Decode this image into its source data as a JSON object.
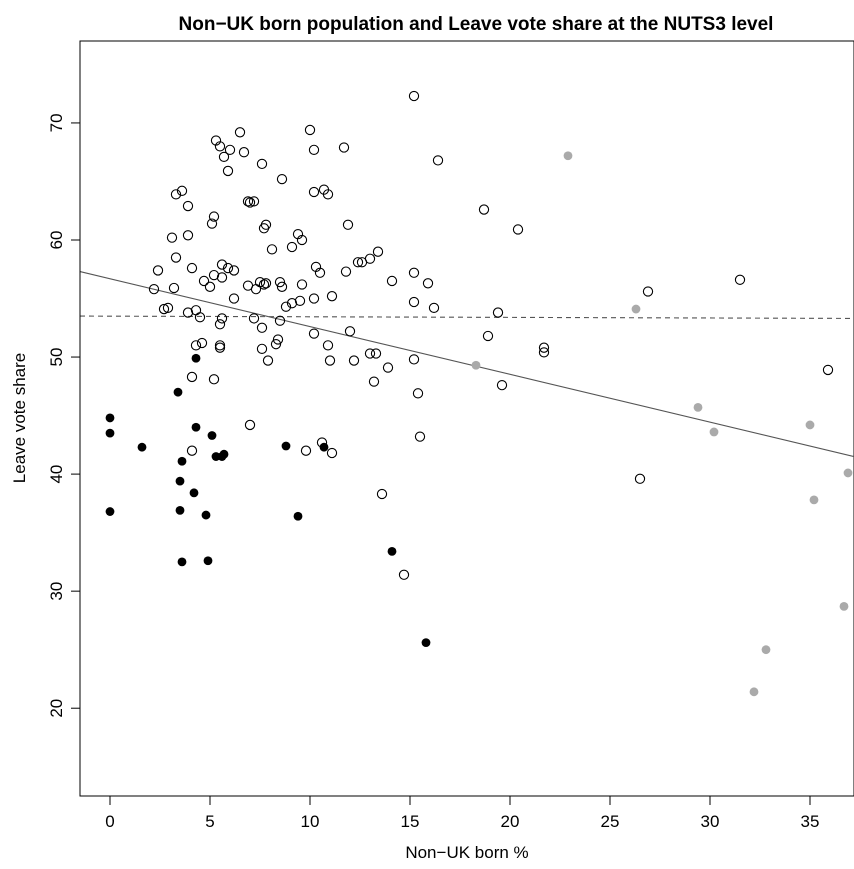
{
  "chart_data": {
    "type": "scatter",
    "title": "Non−UK born population and Leave vote share at the NUTS3 level",
    "xlabel": "Non−UK born %",
    "ylabel": "Leave vote share",
    "xlim": [
      -1.5,
      37.2
    ],
    "ylim": [
      12.5,
      77
    ],
    "xticks": [
      0,
      5,
      10,
      15,
      20,
      25,
      30,
      35
    ],
    "yticks": [
      20,
      30,
      40,
      50,
      60,
      70
    ],
    "xtick_labels": [
      "0",
      "5",
      "10",
      "15",
      "20",
      "25",
      "30",
      "35"
    ],
    "ytick_labels": [
      "20",
      "30",
      "40",
      "50",
      "60",
      "70"
    ],
    "grid": false,
    "series": [
      {
        "marker": "open-circle",
        "color": "#000000",
        "points": [
          [
            15.2,
            72.3
          ],
          [
            10.0,
            69.4
          ],
          [
            6.5,
            69.2
          ],
          [
            5.3,
            68.5
          ],
          [
            5.5,
            68.0
          ],
          [
            11.7,
            67.9
          ],
          [
            6.0,
            67.7
          ],
          [
            10.2,
            67.7
          ],
          [
            6.7,
            67.5
          ],
          [
            5.7,
            67.1
          ],
          [
            16.4,
            66.8
          ],
          [
            7.6,
            66.5
          ],
          [
            5.9,
            65.9
          ],
          [
            8.6,
            65.2
          ],
          [
            3.6,
            64.2
          ],
          [
            3.3,
            63.9
          ],
          [
            10.7,
            64.3
          ],
          [
            10.2,
            64.1
          ],
          [
            10.9,
            63.9
          ],
          [
            6.9,
            63.3
          ],
          [
            7.0,
            63.2
          ],
          [
            7.2,
            63.3
          ],
          [
            3.9,
            62.9
          ],
          [
            18.7,
            62.6
          ],
          [
            5.2,
            62.0
          ],
          [
            5.1,
            61.4
          ],
          [
            7.8,
            61.3
          ],
          [
            7.7,
            61.0
          ],
          [
            11.9,
            61.3
          ],
          [
            20.4,
            60.9
          ],
          [
            3.1,
            60.2
          ],
          [
            3.9,
            60.4
          ],
          [
            9.4,
            60.5
          ],
          [
            9.6,
            60.0
          ],
          [
            8.1,
            59.2
          ],
          [
            9.1,
            59.4
          ],
          [
            13.4,
            59.0
          ],
          [
            3.3,
            58.5
          ],
          [
            13.0,
            58.4
          ],
          [
            12.4,
            58.1
          ],
          [
            12.6,
            58.1
          ],
          [
            2.4,
            57.4
          ],
          [
            4.1,
            57.6
          ],
          [
            5.6,
            57.9
          ],
          [
            5.9,
            57.6
          ],
          [
            6.2,
            57.4
          ],
          [
            10.3,
            57.7
          ],
          [
            10.5,
            57.2
          ],
          [
            11.8,
            57.3
          ],
          [
            15.2,
            57.2
          ],
          [
            5.2,
            57.0
          ],
          [
            5.6,
            56.8
          ],
          [
            4.7,
            56.5
          ],
          [
            6.9,
            56.1
          ],
          [
            7.5,
            56.4
          ],
          [
            7.7,
            56.2
          ],
          [
            7.8,
            56.3
          ],
          [
            8.5,
            56.4
          ],
          [
            8.6,
            56.0
          ],
          [
            9.6,
            56.2
          ],
          [
            14.1,
            56.5
          ],
          [
            15.9,
            56.3
          ],
          [
            26.9,
            55.6
          ],
          [
            31.5,
            56.6
          ],
          [
            2.2,
            55.8
          ],
          [
            3.2,
            55.9
          ],
          [
            5.0,
            56.0
          ],
          [
            7.3,
            55.8
          ],
          [
            6.2,
            55.0
          ],
          [
            9.5,
            54.8
          ],
          [
            10.2,
            55.0
          ],
          [
            11.1,
            55.2
          ],
          [
            15.2,
            54.7
          ],
          [
            8.8,
            54.3
          ],
          [
            9.1,
            54.6
          ],
          [
            16.2,
            54.2
          ],
          [
            2.7,
            54.1
          ],
          [
            2.9,
            54.2
          ],
          [
            3.9,
            53.8
          ],
          [
            4.5,
            53.4
          ],
          [
            4.3,
            54.0
          ],
          [
            5.6,
            53.3
          ],
          [
            7.2,
            53.3
          ],
          [
            8.5,
            53.1
          ],
          [
            19.4,
            53.8
          ],
          [
            5.5,
            52.8
          ],
          [
            7.6,
            52.5
          ],
          [
            12.0,
            52.2
          ],
          [
            10.2,
            52.0
          ],
          [
            18.9,
            51.8
          ],
          [
            8.4,
            51.5
          ],
          [
            4.6,
            51.2
          ],
          [
            4.3,
            51.0
          ],
          [
            5.5,
            51.0
          ],
          [
            5.5,
            50.8
          ],
          [
            7.6,
            50.7
          ],
          [
            8.3,
            51.1
          ],
          [
            10.9,
            51.0
          ],
          [
            21.7,
            50.8
          ],
          [
            21.7,
            50.4
          ],
          [
            13.0,
            50.3
          ],
          [
            13.3,
            50.3
          ],
          [
            5.2,
            48.1
          ],
          [
            7.9,
            49.7
          ],
          [
            11.0,
            49.7
          ],
          [
            12.2,
            49.7
          ],
          [
            15.2,
            49.8
          ],
          [
            13.9,
            49.1
          ],
          [
            4.1,
            48.3
          ],
          [
            13.2,
            47.9
          ],
          [
            19.6,
            47.6
          ],
          [
            15.4,
            46.9
          ],
          [
            35.9,
            48.9
          ],
          [
            7.0,
            44.2
          ],
          [
            15.5,
            43.2
          ],
          [
            10.6,
            42.7
          ],
          [
            4.1,
            42.0
          ],
          [
            9.8,
            42.0
          ],
          [
            11.1,
            41.8
          ],
          [
            26.5,
            39.6
          ],
          [
            13.6,
            38.3
          ],
          [
            14.7,
            31.4
          ]
        ]
      },
      {
        "marker": "filled-circle",
        "color": "#000000",
        "points": [
          [
            0.0,
            44.8
          ],
          [
            0.0,
            43.5
          ],
          [
            0.0,
            36.8
          ],
          [
            1.6,
            42.3
          ],
          [
            3.4,
            47.0
          ],
          [
            4.3,
            49.9
          ],
          [
            4.3,
            44.0
          ],
          [
            5.1,
            43.3
          ],
          [
            3.6,
            41.1
          ],
          [
            5.3,
            41.5
          ],
          [
            5.6,
            41.5
          ],
          [
            5.7,
            41.7
          ],
          [
            8.8,
            42.4
          ],
          [
            10.7,
            42.3
          ],
          [
            4.2,
            38.4
          ],
          [
            3.5,
            39.4
          ],
          [
            3.5,
            36.9
          ],
          [
            4.8,
            36.5
          ],
          [
            9.4,
            36.4
          ],
          [
            3.6,
            32.5
          ],
          [
            4.9,
            32.6
          ],
          [
            14.1,
            33.4
          ],
          [
            15.8,
            25.6
          ]
        ]
      },
      {
        "marker": "filled-circle",
        "color": "#aaaaaa",
        "points": [
          [
            22.9,
            67.2
          ],
          [
            26.3,
            54.1
          ],
          [
            18.3,
            49.3
          ],
          [
            29.4,
            45.7
          ],
          [
            30.2,
            43.6
          ],
          [
            35.0,
            44.2
          ],
          [
            36.9,
            40.1
          ],
          [
            35.2,
            37.8
          ],
          [
            32.8,
            25.0
          ],
          [
            32.2,
            21.4
          ],
          [
            36.7,
            28.7
          ]
        ]
      }
    ],
    "lines": [
      {
        "style": "solid",
        "color": "#555555",
        "x": [
          -1.5,
          37.2
        ],
        "y": [
          57.3,
          41.5
        ]
      },
      {
        "style": "dashed",
        "color": "#555555",
        "x": [
          -1.5,
          37.2
        ],
        "y": [
          53.5,
          53.3
        ]
      }
    ]
  }
}
